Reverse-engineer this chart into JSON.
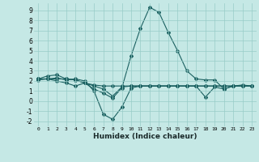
{
  "xlabel": "Humidex (Indice chaleur)",
  "xlim": [
    -0.5,
    23.5
  ],
  "ylim": [
    -2.5,
    9.7
  ],
  "yticks": [
    -2,
    -1,
    0,
    1,
    2,
    3,
    4,
    5,
    6,
    7,
    8,
    9
  ],
  "xticks": [
    0,
    1,
    2,
    3,
    4,
    5,
    6,
    7,
    8,
    9,
    10,
    11,
    12,
    13,
    14,
    15,
    16,
    17,
    18,
    19,
    20,
    21,
    22,
    23
  ],
  "bg_color": "#c5e8e5",
  "grid_color": "#98ccc8",
  "line_color": "#1a6060",
  "series": [
    [
      2.2,
      2.5,
      2.6,
      2.2,
      2.1,
      1.8,
      1.6,
      1.5,
      1.5,
      1.5,
      1.5,
      1.5,
      1.5,
      1.5,
      1.5,
      1.5,
      1.5,
      1.5,
      1.5,
      1.5,
      1.5,
      1.5,
      1.5,
      1.5
    ],
    [
      2.2,
      2.2,
      2.2,
      2.2,
      2.1,
      1.8,
      1.2,
      0.8,
      0.3,
      1.3,
      4.5,
      7.2,
      9.3,
      8.8,
      6.8,
      5.0,
      3.0,
      2.2,
      2.1,
      2.1,
      1.2,
      1.5,
      1.6,
      1.5
    ],
    [
      2.1,
      2.2,
      2.0,
      1.8,
      1.5,
      1.8,
      1.5,
      1.2,
      0.5,
      1.4,
      1.5,
      1.5,
      1.5,
      1.5,
      1.5,
      1.5,
      1.5,
      1.5,
      0.4,
      1.4,
      1.2,
      1.5,
      1.5,
      1.5
    ],
    [
      2.2,
      2.2,
      2.3,
      2.1,
      2.2,
      2.0,
      1.0,
      -1.3,
      -1.8,
      -0.6,
      1.3,
      1.5,
      1.5,
      1.5,
      1.5,
      1.5,
      1.5,
      1.5,
      1.5,
      1.5,
      1.5,
      1.5,
      1.5,
      1.5
    ]
  ]
}
